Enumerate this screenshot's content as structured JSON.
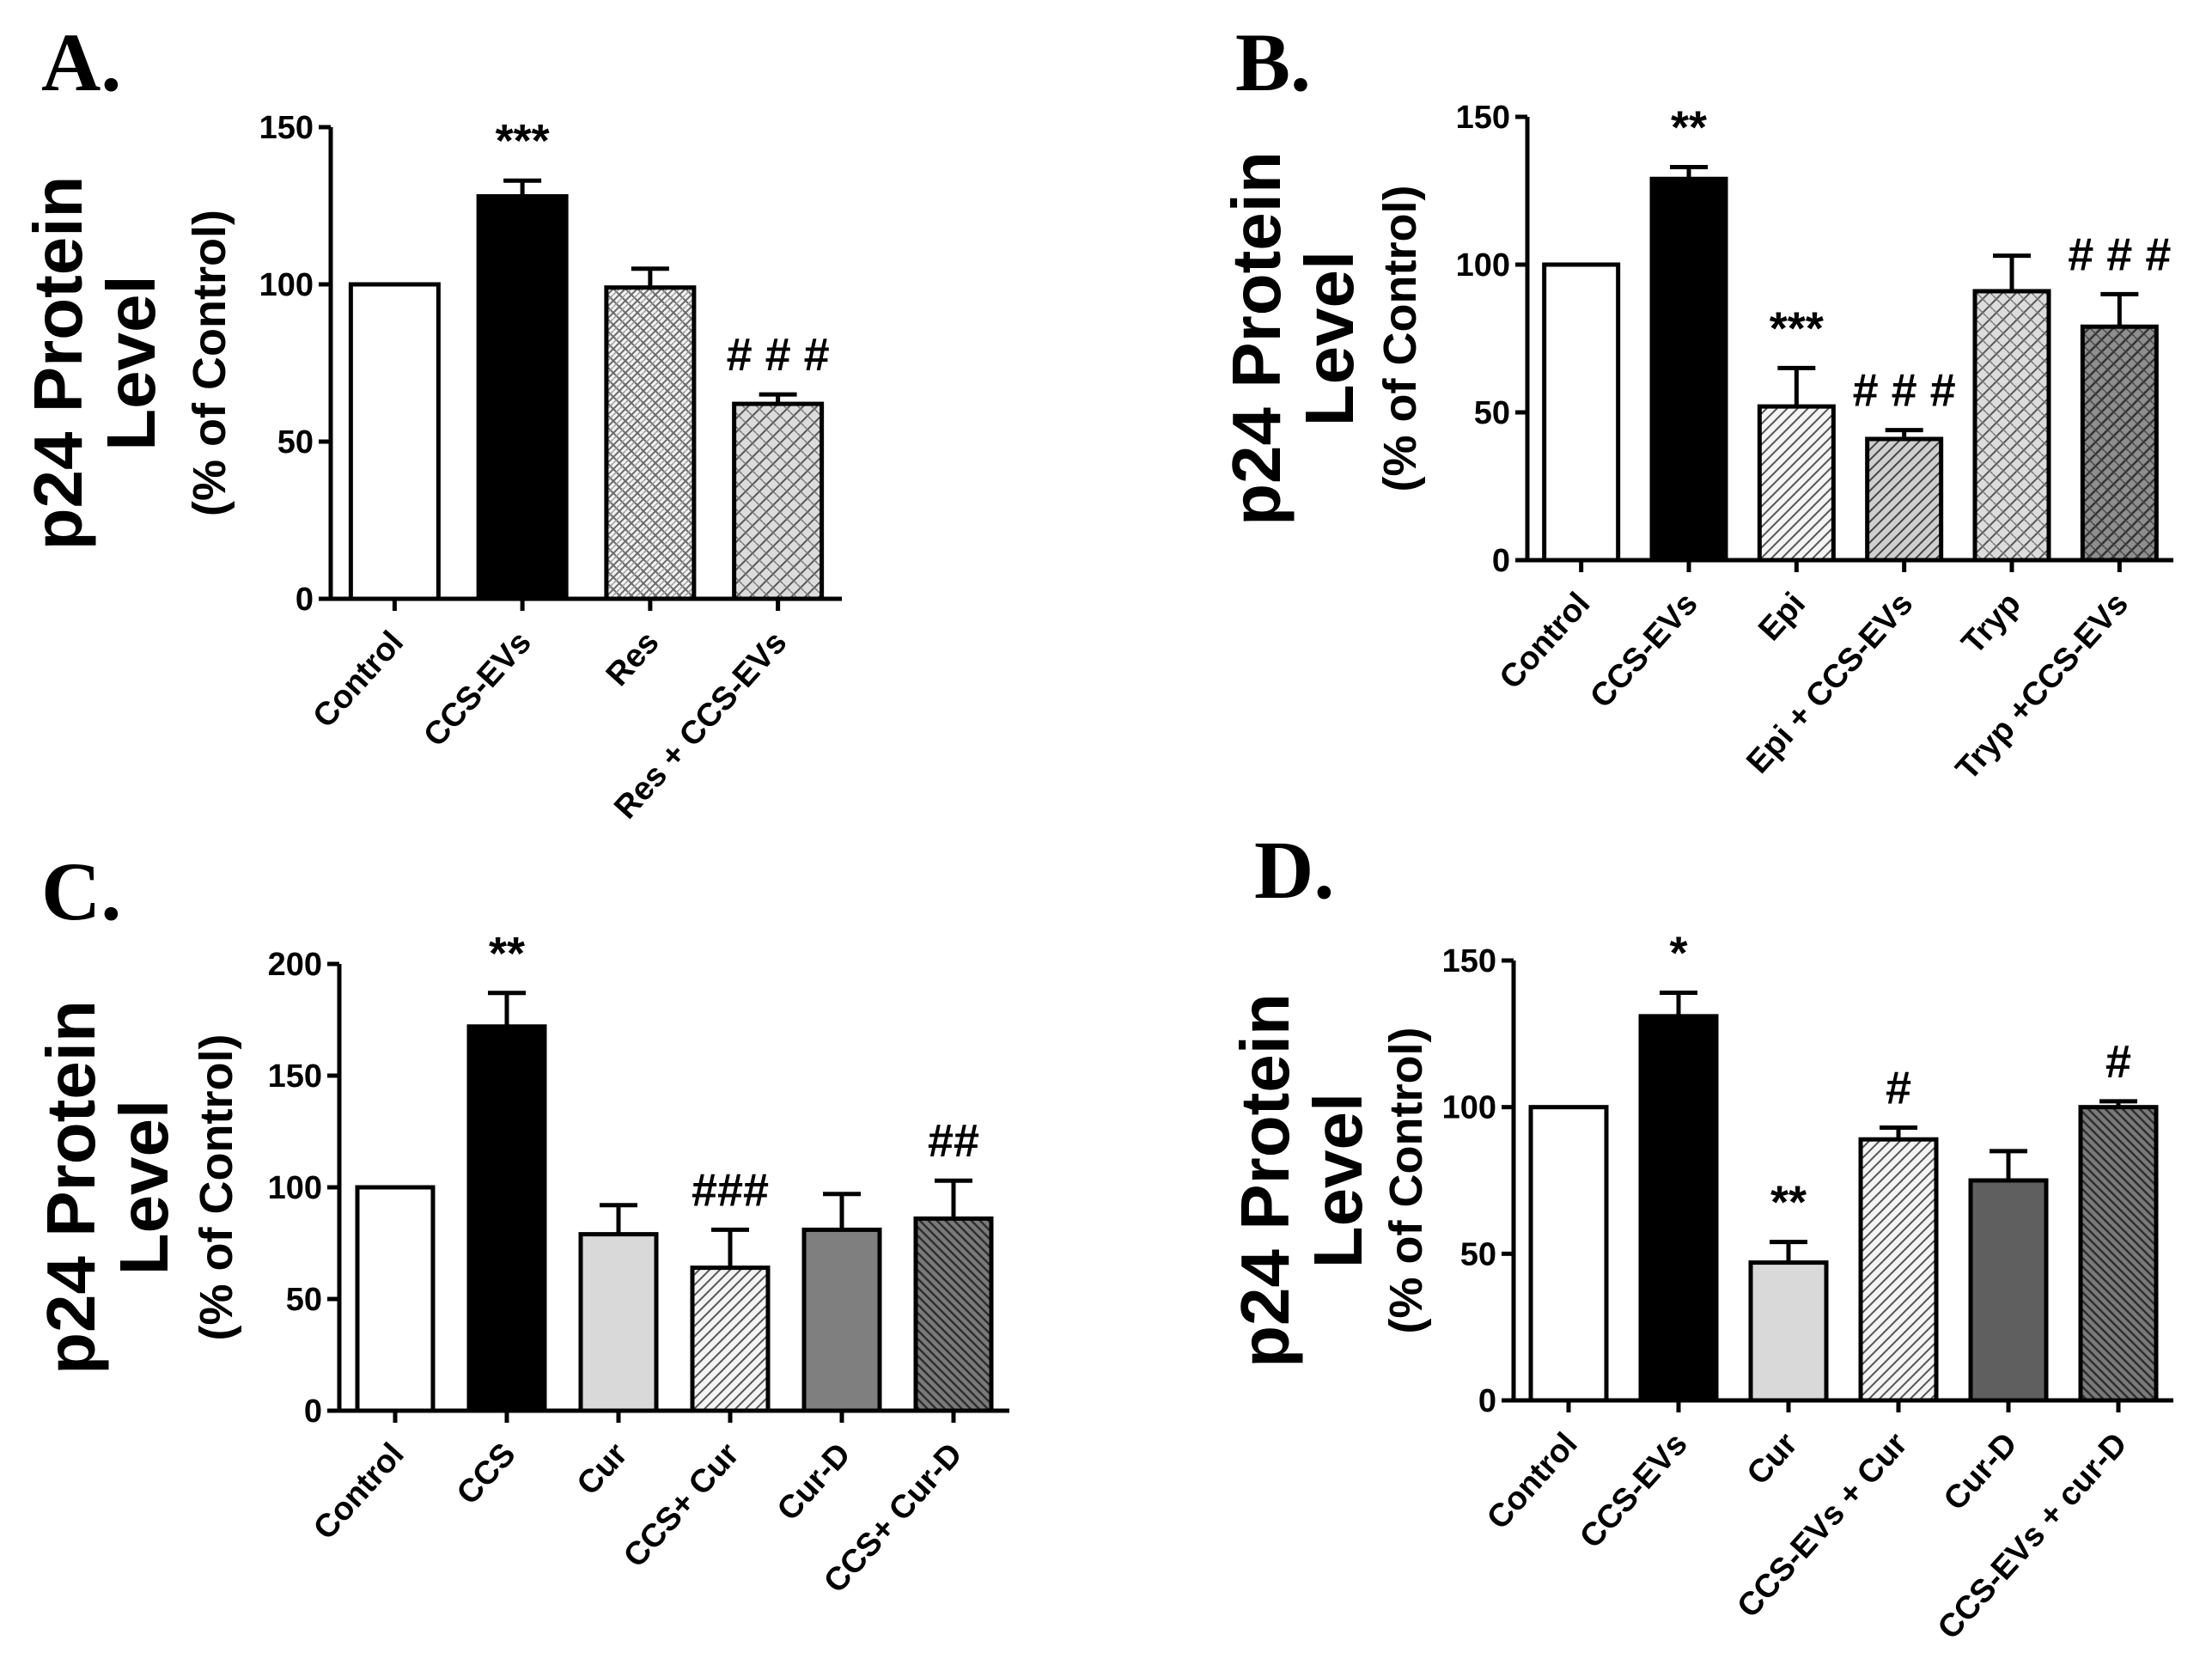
{
  "chart_data": [
    {
      "type": "bar",
      "panel": "A.",
      "ytitle": "p24 Protein",
      "ytitle2": "Level",
      "ysub": "(% of Control)",
      "ylim": [
        0,
        150
      ],
      "yticks": [
        0,
        50,
        100,
        150
      ],
      "categories": [
        "Control",
        "CCS-EVs",
        "Res",
        "Res + CCS-EVs"
      ],
      "values": [
        100,
        128,
        99,
        62
      ],
      "errors": [
        0,
        5,
        6,
        3
      ],
      "annotations": [
        "",
        "***",
        "",
        "# # #"
      ],
      "fills": [
        "open",
        "solid",
        "check",
        "crosshatch"
      ]
    },
    {
      "type": "bar",
      "panel": "B.",
      "ytitle": "p24 Protein",
      "ytitle2": "Level",
      "ysub": "(% of Control)",
      "ylim": [
        0,
        150
      ],
      "yticks": [
        0,
        50,
        100,
        150
      ],
      "categories": [
        "Control",
        "CCS-EVs",
        "Epi",
        "Epi + CCS-EVs",
        "Tryp",
        "Tryp +CCS-EVs"
      ],
      "values": [
        100,
        129,
        52,
        41,
        91,
        79
      ],
      "errors": [
        0,
        4,
        13,
        3,
        12,
        11
      ],
      "annotations": [
        "",
        "**",
        "***",
        "# # #",
        "",
        "# # #"
      ],
      "fills": [
        "open",
        "solid",
        "diag-light",
        "diag-gray",
        "crosshatch",
        "dark-crosshatch"
      ]
    },
    {
      "type": "bar",
      "panel": "C.",
      "ytitle": "p24 Protein",
      "ytitle2": "Level",
      "ysub": "(% of Control)",
      "ylim": [
        0,
        200
      ],
      "yticks": [
        0,
        50,
        100,
        150,
        200
      ],
      "categories": [
        "Control",
        "CCS",
        "Cur",
        "CCS+ Cur",
        "Cur-D",
        "CCS+ Cur-D"
      ],
      "values": [
        100,
        172,
        79,
        64,
        81,
        86
      ],
      "errors": [
        0,
        15,
        13,
        17,
        16,
        17
      ],
      "annotations": [
        "",
        "**",
        "",
        "###",
        "",
        "##"
      ],
      "fills": [
        "open",
        "solid",
        "light",
        "diag-light",
        "gray",
        "dark-diag"
      ]
    },
    {
      "type": "bar",
      "panel": "D.",
      "ytitle": "p24 Protein",
      "ytitle2": "Level",
      "ysub": "(% of Control)",
      "ylim": [
        0,
        150
      ],
      "yticks": [
        0,
        50,
        100,
        150
      ],
      "categories": [
        "Control",
        "CCS-EVs",
        "Cur",
        "CCS-EVs + Cur",
        "Cur-D",
        "CCS-EVs + cur-D"
      ],
      "values": [
        100,
        131,
        47,
        89,
        75,
        100
      ],
      "errors": [
        0,
        8,
        7,
        4,
        10,
        2
      ],
      "annotations": [
        "",
        "*",
        "**",
        "#",
        "",
        "#"
      ],
      "fills": [
        "open",
        "solid",
        "light",
        "diag-light",
        "darkgray",
        "dark-diag"
      ]
    }
  ]
}
